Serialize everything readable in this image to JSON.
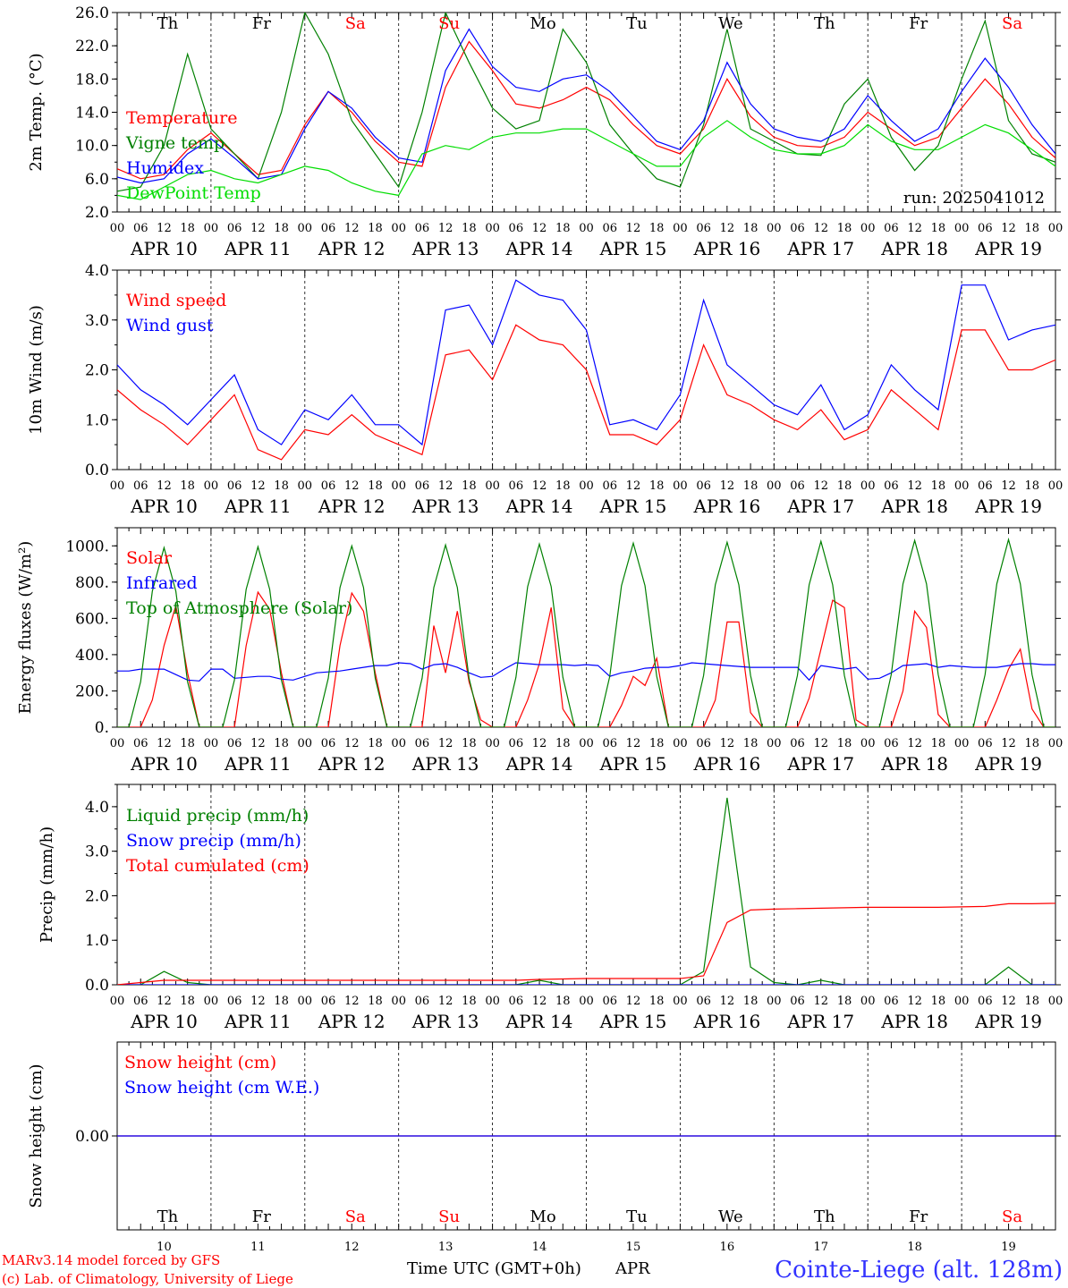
{
  "colors": {
    "temperature": "#ff0000",
    "vigne": "#008000",
    "humidex": "#0000ff",
    "dewpoint": "#00dd00",
    "wind_speed": "#ff0000",
    "wind_gust": "#0000ff",
    "solar": "#ff0000",
    "infrared": "#0000ff",
    "toa": "#008000",
    "liquid": "#008000",
    "snow_precip": "#0000ff",
    "cumulated": "#ff0000",
    "snow_height": "#ff0000",
    "snow_we": "#0000ff",
    "station": "#3333ff",
    "footer": "#ff0000",
    "weekend": "#ff0000"
  },
  "days": {
    "weekday_labels": [
      "Th",
      "Fr",
      "Sa",
      "Su",
      "Mo",
      "Tu",
      "We",
      "Th",
      "Fr",
      "Sa"
    ],
    "weekend_flags": [
      false,
      false,
      true,
      true,
      false,
      false,
      false,
      false,
      false,
      true
    ],
    "date_labels": [
      "APR 10",
      "APR 11",
      "APR 12",
      "APR 13",
      "APR 14",
      "APR 15",
      "APR 16",
      "APR 17",
      "APR 18",
      "APR 19"
    ],
    "day_numbers": [
      "10",
      "11",
      "12",
      "13",
      "14",
      "15",
      "16",
      "17",
      "18",
      "19"
    ],
    "hour_ticks": [
      "00",
      "06",
      "12",
      "18"
    ],
    "final_hour": "00"
  },
  "footer": {
    "model": "MARv3.14 model forced by GFS",
    "lab": "(c) Lab. of Climatology, University of Liege",
    "xlabel": "Time UTC (GMT+0h)",
    "month": "APR",
    "station": "Cointe-Liege (alt. 128m)"
  },
  "chart_data": [
    {
      "type": "line",
      "ylabel": "2m Temp. (°C)",
      "ylim": [
        2.0,
        26.0
      ],
      "yticks": [
        "2.0",
        "6.0",
        "10.0",
        "14.0",
        "18.0",
        "22.0",
        "26.0"
      ],
      "annotation": "run: 2025041012",
      "x_start": "2025-04-10 00:00",
      "x_step_hours": 6,
      "series": [
        {
          "name": "Temperature",
          "color": "temperature",
          "values": [
            7.2,
            6.0,
            6.5,
            9.5,
            11.5,
            9.0,
            6.5,
            7.0,
            12.5,
            16.5,
            14.0,
            10.5,
            8.0,
            7.5,
            17.0,
            22.5,
            19.0,
            15.0,
            14.5,
            15.5,
            17.0,
            15.5,
            12.5,
            10.0,
            9.0,
            12.0,
            18.0,
            13.5,
            11.0,
            10.0,
            9.8,
            11.0,
            14.0,
            12.0,
            10.0,
            11.0,
            14.5,
            18.0,
            15.0,
            11.0,
            8.5,
            7.5,
            8.5,
            11.5,
            13.0,
            11.0,
            10.5,
            8.0,
            11.5,
            16.0,
            14.5,
            13.0,
            15.5,
            14.8,
            16.5,
            14.5
          ]
        },
        {
          "name": "Vigne temp",
          "color": "vigne",
          "values": [
            4.5,
            5.0,
            10.0,
            21.0,
            12.0,
            9.0,
            6.0,
            14.0,
            26.0,
            21.0,
            13.0,
            9.0,
            5.0,
            14.0,
            26.0,
            20.0,
            14.5,
            12.0,
            13.0,
            24.0,
            20.0,
            12.5,
            9.0,
            6.0,
            5.0,
            12.5,
            24.0,
            12.0,
            10.5,
            9.0,
            8.8,
            15.0,
            18.0,
            11.0,
            7.0,
            10.0,
            18.0,
            25.0,
            13.0,
            9.0,
            8.0,
            7.0,
            8.0,
            22.0,
            16.0,
            7.0,
            4.0,
            10.0,
            17.0,
            26.0,
            15.0,
            12.5,
            11.0,
            20.0,
            17.0,
            12.0
          ]
        },
        {
          "name": "Humidex",
          "color": "humidex",
          "values": [
            6.2,
            5.5,
            6.0,
            9.0,
            10.8,
            8.5,
            6.0,
            6.5,
            12.0,
            16.5,
            14.5,
            11.0,
            8.5,
            8.0,
            19.0,
            24.0,
            19.5,
            17.0,
            16.5,
            18.0,
            18.5,
            16.5,
            13.5,
            10.5,
            9.5,
            13.0,
            20.0,
            15.0,
            12.0,
            11.0,
            10.5,
            12.0,
            16.0,
            13.0,
            10.5,
            12.0,
            16.5,
            20.5,
            17.0,
            12.5,
            9.0,
            8.0,
            9.0,
            12.5,
            13.5,
            11.5,
            8.0,
            6.5,
            12.0,
            16.5,
            15.0,
            14.0,
            16.0,
            17.5,
            18.0,
            16.5
          ]
        },
        {
          "name": "DewPoint Temp",
          "color": "dewpoint",
          "values": [
            4.0,
            3.5,
            5.0,
            6.5,
            7.0,
            6.0,
            5.5,
            6.5,
            7.5,
            7.0,
            5.5,
            4.5,
            4.0,
            9.0,
            10.0,
            9.5,
            11.0,
            11.5,
            11.5,
            12.0,
            12.0,
            10.5,
            9.0,
            7.5,
            7.5,
            11.0,
            13.0,
            11.0,
            9.5,
            9.0,
            9.0,
            10.0,
            12.5,
            10.5,
            9.5,
            9.5,
            11.0,
            12.5,
            11.5,
            9.5,
            7.5,
            7.0,
            7.0,
            7.5,
            6.5,
            5.5,
            4.5,
            3.5,
            6.0,
            7.0,
            6.5,
            8.5,
            10.5,
            12.0,
            12.0,
            11.5
          ]
        }
      ]
    },
    {
      "type": "line",
      "ylabel": "10m Wind (m/s)",
      "ylim": [
        0.0,
        4.0
      ],
      "yticks": [
        "0.0",
        "1.0",
        "2.0",
        "3.0",
        "4.0"
      ],
      "x_start": "2025-04-10 00:00",
      "x_step_hours": 6,
      "series": [
        {
          "name": "Wind speed",
          "color": "wind_speed",
          "values": [
            1.6,
            1.2,
            0.9,
            0.5,
            1.0,
            1.5,
            0.4,
            0.2,
            0.8,
            0.7,
            1.1,
            0.7,
            0.5,
            0.3,
            2.3,
            2.4,
            1.8,
            2.9,
            2.6,
            2.5,
            2.0,
            0.7,
            0.7,
            0.5,
            1.0,
            2.5,
            1.5,
            1.3,
            1.0,
            0.8,
            1.2,
            0.6,
            0.8,
            1.6,
            1.2,
            0.8,
            2.8,
            2.8,
            2.0,
            2.0,
            2.2,
            2.3,
            2.0,
            2.0,
            1.0,
            0.5,
            1.0,
            1.3,
            2.0,
            2.6,
            0.5,
            0.6,
            2.9,
            2.2,
            2.5,
            1.1,
            2.3
          ]
        },
        {
          "name": "Wind gust",
          "color": "wind_gust",
          "values": [
            2.1,
            1.6,
            1.3,
            0.9,
            1.4,
            1.9,
            0.8,
            0.5,
            1.2,
            1.0,
            1.5,
            0.9,
            0.9,
            0.5,
            3.2,
            3.3,
            2.5,
            3.8,
            3.5,
            3.4,
            2.8,
            0.9,
            1.0,
            0.8,
            1.5,
            3.4,
            2.1,
            1.7,
            1.3,
            1.1,
            1.7,
            0.8,
            1.1,
            2.1,
            1.6,
            1.2,
            3.7,
            3.7,
            2.6,
            2.8,
            2.9,
            3.0,
            2.6,
            2.6,
            1.4,
            0.7,
            1.3,
            1.8,
            2.6,
            3.5,
            0.6,
            0.7,
            3.8,
            2.8,
            3.2,
            1.5,
            3.0
          ]
        }
      ]
    },
    {
      "type": "line",
      "ylabel": "Energy fluxes (W/m²)",
      "ylim": [
        0,
        1100
      ],
      "yticks": [
        "0.",
        "200.",
        "400.",
        "600.",
        "800.",
        "1000."
      ],
      "x_start": "2025-04-10 00:00",
      "x_step_hours": 3,
      "series": [
        {
          "name": "Solar",
          "color": "solar",
          "values": [
            0,
            0,
            0,
            150,
            450,
            670,
            300,
            0,
            0,
            0,
            0,
            450,
            745,
            650,
            300,
            0,
            0,
            0,
            0,
            450,
            740,
            640,
            300,
            0,
            0,
            0,
            0,
            560,
            300,
            640,
            250,
            40,
            0,
            0,
            0,
            150,
            350,
            660,
            100,
            0,
            0,
            0,
            0,
            120,
            280,
            230,
            380,
            0,
            0,
            0,
            0,
            150,
            580,
            580,
            80,
            0,
            0,
            0,
            0,
            160,
            430,
            700,
            660,
            40,
            0,
            0,
            0,
            200,
            640,
            550,
            70,
            0,
            0,
            0,
            0,
            150,
            320,
            430,
            100,
            0,
            0
          ]
        },
        {
          "name": "Infrared",
          "color": "infrared",
          "values": [
            310,
            310,
            320,
            320,
            320,
            290,
            260,
            255,
            320,
            320,
            270,
            275,
            280,
            280,
            265,
            260,
            280,
            300,
            305,
            310,
            320,
            330,
            340,
            340,
            355,
            350,
            320,
            345,
            350,
            330,
            300,
            275,
            280,
            320,
            355,
            350,
            345,
            345,
            345,
            340,
            345,
            340,
            280,
            300,
            310,
            325,
            330,
            330,
            340,
            355,
            350,
            345,
            340,
            335,
            330,
            330,
            330,
            330,
            330,
            260,
            340,
            330,
            320,
            330,
            265,
            270,
            300,
            340,
            345,
            350,
            330,
            340,
            335,
            330,
            330,
            330,
            340,
            350,
            350,
            345,
            345
          ]
        },
        {
          "name": "Top of Atmosphere (Solar)",
          "color": "toa",
          "values": [
            0,
            0,
            250,
            750,
            990,
            750,
            250,
            0,
            0,
            0,
            260,
            760,
            995,
            760,
            260,
            0,
            0,
            0,
            270,
            770,
            1000,
            770,
            270,
            0,
            0,
            0,
            270,
            770,
            1005,
            770,
            270,
            0,
            0,
            0,
            275,
            775,
            1010,
            775,
            275,
            0,
            0,
            0,
            280,
            780,
            1015,
            780,
            280,
            0,
            0,
            0,
            285,
            785,
            1020,
            785,
            285,
            0,
            0,
            0,
            285,
            785,
            1025,
            785,
            285,
            0,
            0,
            0,
            290,
            790,
            1030,
            790,
            290,
            0,
            0,
            0,
            290,
            790,
            1035,
            790,
            290,
            0,
            0
          ]
        }
      ]
    },
    {
      "type": "line",
      "ylabel": "Precip (mm/h)",
      "ylim": [
        0.0,
        4.5
      ],
      "yticks": [
        "0.0",
        "1.0",
        "2.0",
        "3.0",
        "4.0"
      ],
      "x_start": "2025-04-10 00:00",
      "x_step_hours": 6,
      "series": [
        {
          "name": "Liquid precip (mm/h)",
          "color": "liquid",
          "values": [
            0,
            0,
            0.3,
            0.05,
            0,
            0,
            0,
            0,
            0,
            0,
            0,
            0,
            0,
            0,
            0,
            0,
            0,
            0,
            0.1,
            0,
            0,
            0,
            0,
            0,
            0,
            0.3,
            4.2,
            0.4,
            0.05,
            0,
            0.1,
            0,
            0,
            0,
            0,
            0,
            0,
            0,
            0.4,
            0,
            0,
            0.2,
            0,
            0,
            0,
            0,
            0,
            0,
            0,
            0,
            0,
            0,
            0.08,
            0.05,
            0,
            0.05,
            0
          ]
        },
        {
          "name": "Snow precip (mm/h)",
          "color": "snow_precip",
          "values": [
            0,
            0,
            0,
            0,
            0,
            0,
            0,
            0,
            0,
            0,
            0,
            0,
            0,
            0,
            0,
            0,
            0,
            0,
            0,
            0,
            0,
            0,
            0,
            0,
            0,
            0,
            0,
            0,
            0,
            0,
            0,
            0,
            0,
            0,
            0,
            0,
            0,
            0,
            0,
            0,
            0,
            0,
            0,
            0,
            0,
            0,
            0,
            0,
            0,
            0,
            0,
            0,
            0,
            0,
            0,
            0,
            0
          ]
        },
        {
          "name": "Total cumulated (cm)",
          "color": "cumulated",
          "values": [
            0,
            0.05,
            0.1,
            0.1,
            0.1,
            0.1,
            0.1,
            0.1,
            0.1,
            0.1,
            0.1,
            0.1,
            0.1,
            0.1,
            0.1,
            0.1,
            0.1,
            0.1,
            0.12,
            0.13,
            0.14,
            0.14,
            0.14,
            0.14,
            0.14,
            0.2,
            1.4,
            1.68,
            1.7,
            1.71,
            1.72,
            1.73,
            1.74,
            1.74,
            1.74,
            1.74,
            1.75,
            1.76,
            1.82,
            1.82,
            1.83,
            1.88,
            1.9,
            1.9,
            1.91,
            1.91,
            1.91,
            1.91,
            1.91,
            1.91,
            1.91,
            1.91,
            1.92,
            1.93,
            1.94,
            1.95,
            1.96
          ]
        }
      ]
    },
    {
      "type": "line",
      "ylabel": "Snow height (cm)",
      "ylim": [
        -1,
        1
      ],
      "yticks": [
        "0.00"
      ],
      "x_start": "2025-04-10 00:00",
      "x_step_hours": 240,
      "series": [
        {
          "name": "Snow height (cm)",
          "color": "snow_height",
          "values": [
            0.0,
            0.0
          ]
        },
        {
          "name": "Snow height (cm W.E.)",
          "color": "snow_we",
          "values": [
            0.0,
            0.0
          ]
        }
      ]
    }
  ]
}
